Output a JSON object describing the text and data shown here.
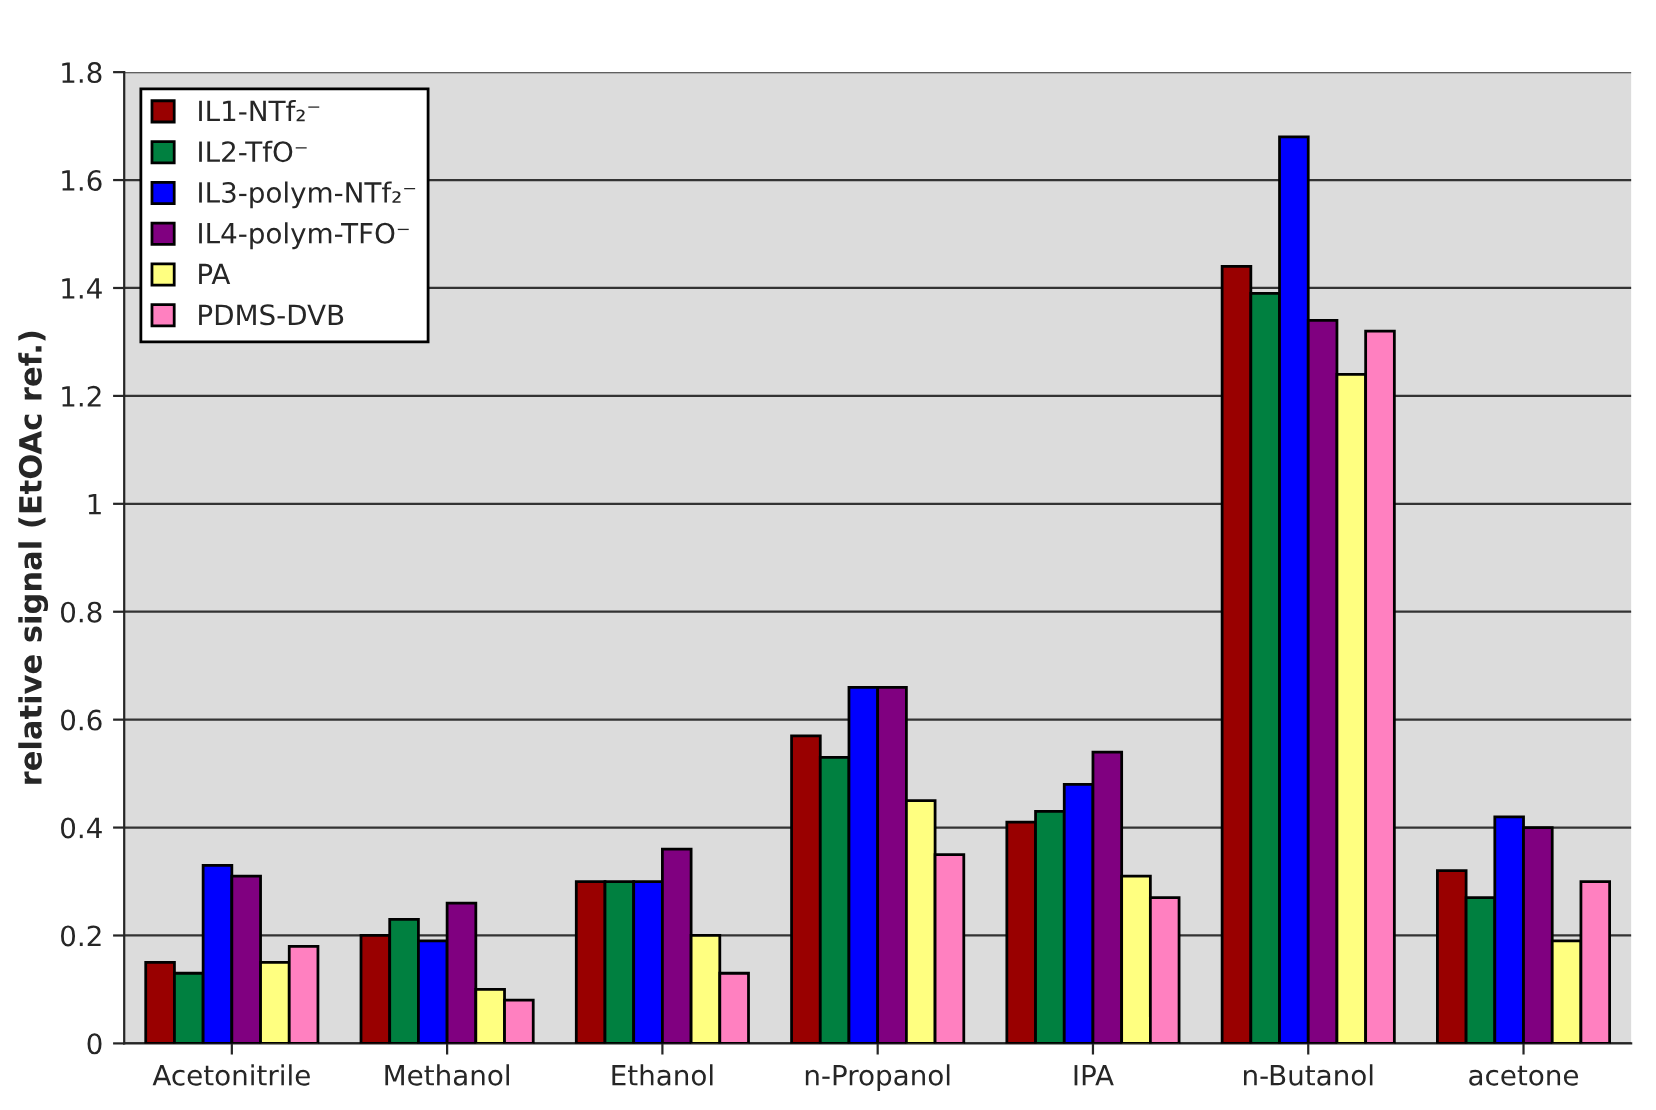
{
  "chart_data": {
    "type": "bar",
    "ylabel": "relative signal (EtOAc ref.)",
    "categories": [
      "Acetonitrile",
      "Methanol",
      "Ethanol",
      "n-Propanol",
      "IPA",
      "n-Butanol",
      "acetone"
    ],
    "series": [
      {
        "name": "IL1-NTf₂⁻",
        "color": "#990000",
        "values": [
          0.15,
          0.2,
          0.3,
          0.57,
          0.41,
          1.44,
          0.32
        ]
      },
      {
        "name": "IL2-TfO⁻",
        "color": "#008040",
        "values": [
          0.13,
          0.23,
          0.3,
          0.53,
          0.43,
          1.39,
          0.27
        ]
      },
      {
        "name": "IL3-polym-NTf₂⁻",
        "color": "#0000ff",
        "values": [
          0.33,
          0.19,
          0.3,
          0.66,
          0.48,
          1.68,
          0.42
        ]
      },
      {
        "name": "IL4-polym-TFO⁻",
        "color": "#800080",
        "values": [
          0.31,
          0.26,
          0.36,
          0.66,
          0.54,
          1.34,
          0.4
        ]
      },
      {
        "name": "PA",
        "color": "#ffff80",
        "values": [
          0.15,
          0.1,
          0.2,
          0.45,
          0.31,
          1.24,
          0.19
        ]
      },
      {
        "name": "PDMS-DVB",
        "color": "#ff80c0",
        "values": [
          0.18,
          0.08,
          0.13,
          0.35,
          0.27,
          1.32,
          0.3
        ]
      }
    ],
    "ylim": [
      0,
      1.8
    ],
    "yticks": [
      0,
      0.2,
      0.4,
      0.6,
      0.8,
      1,
      1.2,
      1.4,
      1.6,
      1.8
    ],
    "grid": "y",
    "legend": "top left"
  }
}
